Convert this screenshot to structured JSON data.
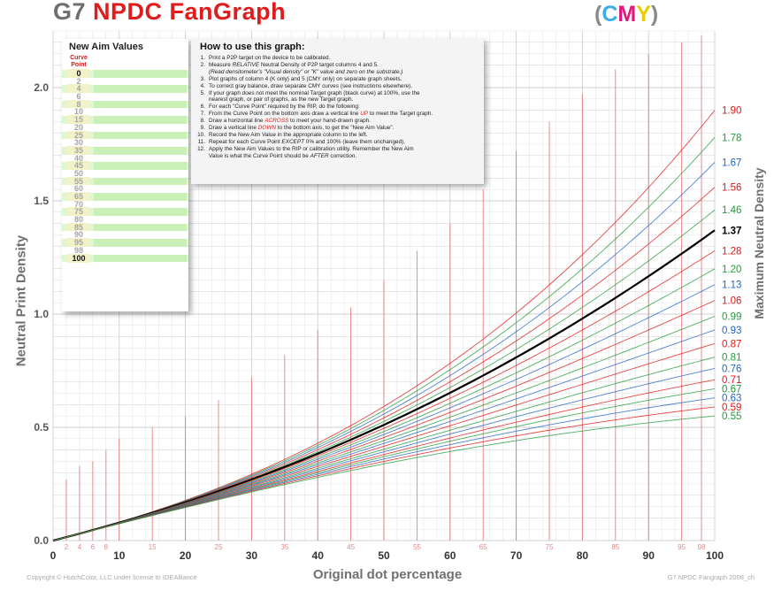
{
  "title": {
    "g7": "G7",
    "npdc": "NPDC FanGraph"
  },
  "cmy": {
    "open": "(",
    "c": "C",
    "m": "M",
    "y": "Y",
    "close": ")",
    "c_color": "#3aaee8",
    "m_color": "#e0197d",
    "y_color": "#e6cf00"
  },
  "colors": {
    "red": "#dd1818",
    "green": "#1f9c3a",
    "blue": "#1f64c8",
    "black": "#000000",
    "grid": "#e2e2e2",
    "grid_major": "#cfcfcf"
  },
  "footer": {
    "copyright": "Copyright © HutchColor, LLC under license to IDEAlliance",
    "version": "G7 NPDC Fangraph 2008_ch"
  },
  "aim_panel": {
    "title": "New Aim Values",
    "curve_point_label": "Curve\nPoint",
    "points": [
      "0",
      "2",
      "4",
      "6",
      "8",
      "10",
      "15",
      "20",
      "25",
      "30",
      "35",
      "40",
      "45",
      "50",
      "55",
      "60",
      "65",
      "70",
      "75",
      "80",
      "85",
      "90",
      "95",
      "98",
      "100"
    ]
  },
  "howto": {
    "title": "How to use this graph:",
    "lines": [
      {
        "n": "1.",
        "parts": [
          {
            "t": "Print a P2P target on the device to be calibrated."
          }
        ]
      },
      {
        "n": "2.",
        "parts": [
          {
            "t": "Measure "
          },
          {
            "t": "RELATIVE",
            "s": "it"
          },
          {
            "t": " Neutral Density of P2P target columns 4 and 5."
          }
        ]
      },
      {
        "n": "",
        "parts": [
          {
            "t": "(Read densitometer's \"Visual density\" or \"K\" value and zero on the substrate.)",
            "s": "it"
          }
        ]
      },
      {
        "n": "3.",
        "parts": [
          {
            "t": "Plot graphs of column 4 (K only) and 5 (CMY only) on separate graph sheets."
          }
        ]
      },
      {
        "n": "4.",
        "parts": [
          {
            "t": "To correct gray balance, draw separate CMY curves (see instructions elsewhere)."
          }
        ]
      },
      {
        "n": "5.",
        "parts": [
          {
            "t": "If your graph does not meet the nominal Target graph (black curve) at 100%, use the"
          }
        ]
      },
      {
        "n": "",
        "parts": [
          {
            "t": "nearest graph, or pair of graphs, as the new Target graph."
          }
        ]
      },
      {
        "n": "6.",
        "parts": [
          {
            "t": "For each \"Curve Point\" required by the RIP, do the following:"
          }
        ]
      },
      {
        "n": "7.",
        "parts": [
          {
            "t": "From the Curve Point on the bottom axis draw a vertical line "
          },
          {
            "t": "UP",
            "s": "red"
          },
          {
            "t": " to meet the Target graph."
          }
        ]
      },
      {
        "n": "8.",
        "parts": [
          {
            "t": "Draw a horizontal line "
          },
          {
            "t": "ACROSS",
            "s": "red"
          },
          {
            "t": " to meet your hand-drawn graph."
          }
        ]
      },
      {
        "n": "9.",
        "parts": [
          {
            "t": "Draw a vertical line "
          },
          {
            "t": "DOWN",
            "s": "red"
          },
          {
            "t": " to the bottom axis, to get the \"New Aim Value\"."
          }
        ]
      },
      {
        "n": "10.",
        "parts": [
          {
            "t": "Record the New Aim Value in the appropriate column to the left."
          }
        ]
      },
      {
        "n": "11.",
        "parts": [
          {
            "t": "Repeat for each Curve Point "
          },
          {
            "t": "EXCEPT",
            "s": "it"
          },
          {
            "t": " 0% and 100% (leave them unchanged)."
          }
        ]
      },
      {
        "n": "12.",
        "parts": [
          {
            "t": "Apply the New Aim Values to the RIP or calibration utility.  Remember the New Aim"
          }
        ]
      },
      {
        "n": "",
        "parts": [
          {
            "t": "Value is what the Curve Point should be "
          },
          {
            "t": "AFTER",
            "s": "it"
          },
          {
            "t": " correction."
          }
        ]
      }
    ]
  },
  "chart_data": {
    "type": "line",
    "xlabel": "Original dot percentage",
    "ylabel": "Neutral Print Density",
    "ylabel_right": "Maximum Neutral Density",
    "xlim": [
      0,
      100
    ],
    "ylim": [
      0,
      2.25
    ],
    "x_ticks": [
      0,
      10,
      20,
      30,
      40,
      50,
      60,
      70,
      80,
      90,
      100
    ],
    "x_tick_labels": [
      "0",
      "10",
      "20",
      "30",
      "40",
      "50",
      "60",
      "70",
      "80",
      "90",
      "100"
    ],
    "x_sub_ticks": [
      2,
      4,
      6,
      8,
      15,
      25,
      35,
      45,
      55,
      65,
      75,
      85,
      95,
      98
    ],
    "x_sub_tick_labels": [
      "2",
      "4",
      "6",
      "8",
      "15",
      "25",
      "35",
      "45",
      "55",
      "65",
      "75",
      "85",
      "95",
      "98"
    ],
    "y_ticks": [
      0.0,
      0.5,
      1.0,
      1.5,
      2.0
    ],
    "y_tick_labels": [
      "0.0",
      "0.5",
      "1.0",
      "1.5",
      "2.0"
    ],
    "grid": true,
    "reference_bars": [
      {
        "x": 2,
        "top": 0.27
      },
      {
        "x": 4,
        "top": 0.33
      },
      {
        "x": 6,
        "top": 0.35
      },
      {
        "x": 8,
        "top": 0.4
      },
      {
        "x": 10,
        "top": 0.45
      },
      {
        "x": 15,
        "top": 0.5
      },
      {
        "x": 20,
        "top": 0.55
      },
      {
        "x": 25,
        "top": 0.62
      },
      {
        "x": 30,
        "top": 0.72
      },
      {
        "x": 35,
        "top": 0.82
      },
      {
        "x": 40,
        "top": 0.93
      },
      {
        "x": 45,
        "top": 1.03
      },
      {
        "x": 50,
        "top": 1.15
      },
      {
        "x": 55,
        "top": 1.28
      },
      {
        "x": 60,
        "top": 1.4
      },
      {
        "x": 65,
        "top": 1.55
      },
      {
        "x": 70,
        "top": 1.72
      },
      {
        "x": 75,
        "top": 1.85
      },
      {
        "x": 80,
        "top": 1.97
      },
      {
        "x": 85,
        "top": 2.08
      },
      {
        "x": 90,
        "top": 2.15
      },
      {
        "x": 95,
        "top": 2.2
      },
      {
        "x": 98,
        "top": 2.23
      }
    ],
    "series": [
      {
        "max": 1.9,
        "label": "1.90",
        "color": "red"
      },
      {
        "max": 1.78,
        "label": "1.78",
        "color": "green"
      },
      {
        "max": 1.67,
        "label": "1.67",
        "color": "blue"
      },
      {
        "max": 1.56,
        "label": "1.56",
        "color": "red"
      },
      {
        "max": 1.46,
        "label": "1.46",
        "color": "green"
      },
      {
        "max": 1.37,
        "label": "1.37",
        "color": "black",
        "target": true
      },
      {
        "max": 1.28,
        "label": "1.28",
        "color": "red"
      },
      {
        "max": 1.2,
        "label": "1.20",
        "color": "green"
      },
      {
        "max": 1.13,
        "label": "1.13",
        "color": "blue"
      },
      {
        "max": 1.06,
        "label": "1.06",
        "color": "red"
      },
      {
        "max": 0.99,
        "label": "0.99",
        "color": "green"
      },
      {
        "max": 0.93,
        "label": "0.93",
        "color": "blue"
      },
      {
        "max": 0.87,
        "label": "0.87",
        "color": "red"
      },
      {
        "max": 0.81,
        "label": "0.81",
        "color": "green"
      },
      {
        "max": 0.76,
        "label": "0.76",
        "color": "blue"
      },
      {
        "max": 0.71,
        "label": "0.71",
        "color": "red"
      },
      {
        "max": 0.67,
        "label": "0.67",
        "color": "green"
      },
      {
        "max": 0.63,
        "label": "0.63",
        "color": "blue"
      },
      {
        "max": 0.59,
        "label": "0.59",
        "color": "red"
      },
      {
        "max": 0.55,
        "label": "0.55",
        "color": "green"
      }
    ]
  }
}
